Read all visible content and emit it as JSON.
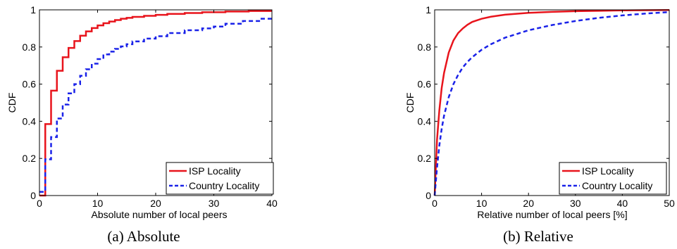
{
  "chart_data": [
    {
      "type": "line",
      "step": true,
      "caption": "(a) Absolute",
      "xlabel": "Absolute number of local peers",
      "ylabel": "CDF",
      "xlim": [
        0,
        40
      ],
      "ylim": [
        0,
        1
      ],
      "xticks": [
        0,
        10,
        20,
        30,
        40
      ],
      "yticks": [
        0,
        0.2,
        0.4,
        0.6,
        0.8,
        1
      ],
      "grid": false,
      "legend_position": "bottom-right",
      "series": [
        {
          "name": "ISP Locality",
          "color": "#e8141c",
          "dash": "solid",
          "x": [
            0,
            1,
            1,
            2,
            2,
            3,
            3,
            4,
            4,
            5,
            5,
            6,
            6,
            7,
            7,
            8,
            8,
            9,
            9,
            10,
            10,
            11,
            11,
            12,
            12,
            13,
            13,
            14,
            14,
            15,
            15,
            16,
            16,
            18,
            18,
            20,
            20,
            22,
            22,
            25,
            25,
            28,
            28,
            32,
            32,
            36,
            36,
            40
          ],
          "y": [
            0,
            0,
            0.385,
            0.385,
            0.565,
            0.565,
            0.672,
            0.672,
            0.745,
            0.745,
            0.795,
            0.795,
            0.832,
            0.832,
            0.861,
            0.861,
            0.884,
            0.884,
            0.902,
            0.902,
            0.916,
            0.916,
            0.928,
            0.928,
            0.937,
            0.937,
            0.945,
            0.945,
            0.952,
            0.952,
            0.957,
            0.957,
            0.962,
            0.962,
            0.968,
            0.968,
            0.973,
            0.973,
            0.978,
            0.978,
            0.983,
            0.983,
            0.987,
            0.987,
            0.991,
            0.991,
            0.994,
            0.994
          ]
        },
        {
          "name": "Country Locality",
          "color": "#1a22e8",
          "dash": "dashed",
          "x": [
            0,
            1,
            1,
            2,
            2,
            3,
            3,
            4,
            4,
            5,
            5,
            6,
            6,
            7,
            7,
            8,
            8,
            9,
            9,
            10,
            10,
            11,
            11,
            12,
            12,
            13,
            13,
            14,
            14,
            15,
            15,
            16,
            16,
            18,
            18,
            20,
            20,
            22,
            22,
            25,
            25,
            28,
            28,
            30,
            30,
            32,
            32,
            35,
            35,
            38,
            38,
            40
          ],
          "y": [
            0.02,
            0.02,
            0.195,
            0.195,
            0.315,
            0.315,
            0.415,
            0.415,
            0.49,
            0.49,
            0.55,
            0.55,
            0.6,
            0.6,
            0.645,
            0.645,
            0.68,
            0.68,
            0.71,
            0.71,
            0.735,
            0.735,
            0.76,
            0.76,
            0.775,
            0.775,
            0.79,
            0.79,
            0.803,
            0.803,
            0.815,
            0.815,
            0.83,
            0.83,
            0.845,
            0.845,
            0.858,
            0.858,
            0.875,
            0.875,
            0.89,
            0.89,
            0.9,
            0.9,
            0.91,
            0.91,
            0.925,
            0.925,
            0.94,
            0.94,
            0.952,
            0.952
          ]
        }
      ]
    },
    {
      "type": "line",
      "caption": "(b) Relative",
      "xlabel": "Relative number of local peers [%]",
      "ylabel": "CDF",
      "xlim": [
        0,
        50
      ],
      "ylim": [
        0,
        1
      ],
      "xticks": [
        0,
        10,
        20,
        30,
        40,
        50
      ],
      "yticks": [
        0,
        0.2,
        0.4,
        0.6,
        0.8,
        1
      ],
      "grid": false,
      "legend_position": "bottom-right",
      "series": [
        {
          "name": "ISP Locality",
          "color": "#e8141c",
          "dash": "solid",
          "x": [
            0,
            0.5,
            1,
            1.5,
            2,
            3,
            4,
            5,
            6,
            7,
            8,
            10,
            12,
            15,
            20,
            25,
            30,
            35,
            40,
            45,
            50
          ],
          "y": [
            0,
            0.3,
            0.46,
            0.58,
            0.66,
            0.77,
            0.835,
            0.875,
            0.9,
            0.92,
            0.935,
            0.952,
            0.963,
            0.974,
            0.984,
            0.989,
            0.993,
            0.995,
            0.997,
            0.998,
            0.999
          ]
        },
        {
          "name": "Country Locality",
          "color": "#1a22e8",
          "dash": "dashed",
          "x": [
            0,
            0.5,
            1,
            1.5,
            2,
            3,
            4,
            5,
            6,
            7,
            8,
            10,
            12,
            15,
            20,
            25,
            30,
            35,
            40,
            45,
            50
          ],
          "y": [
            0,
            0.15,
            0.27,
            0.36,
            0.43,
            0.53,
            0.6,
            0.65,
            0.69,
            0.72,
            0.745,
            0.785,
            0.815,
            0.85,
            0.89,
            0.918,
            0.94,
            0.957,
            0.97,
            0.98,
            0.988
          ]
        }
      ]
    }
  ]
}
